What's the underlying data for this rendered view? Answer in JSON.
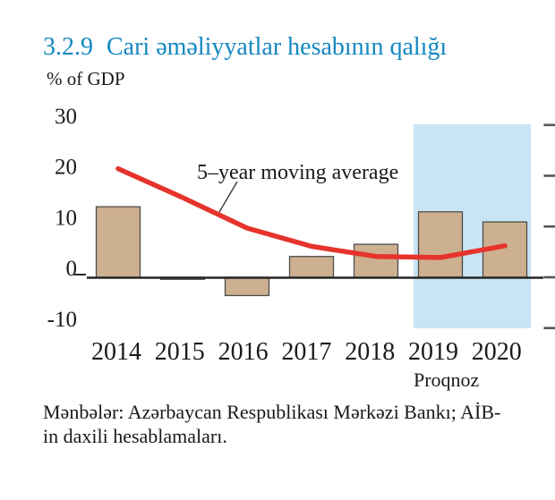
{
  "figure": {
    "number": "3.2.9",
    "title": "Cari əməliyyatlar hesabının qalığı",
    "unit_label": "% of GDP",
    "annotation": "5–year moving average",
    "forecast_label": "Proqnoz",
    "source_line1": "Mənbələr: Azərbaycan Respublikası Mərkəzi Bankı; AİB-",
    "source_line2": "in daxili hesablamaları."
  },
  "colors": {
    "title_blue": "#1588c1",
    "bar_fill": "#cdb08f",
    "bar_stroke": "#4d4d4d",
    "line_red": "#e6332c",
    "forecast_band": "#c9e4f2",
    "axis": "#262626",
    "tick": "#555555",
    "text": "#1a1a1a"
  },
  "chart_data": {
    "type": "bar",
    "title": "3.2.9 Cari əməliyyatlar hesabının qalığı",
    "ylabel": "% of GDP",
    "xlabel": "",
    "categories": [
      "2014",
      "2015",
      "2016",
      "2017",
      "2018",
      "2019",
      "2020"
    ],
    "series": [
      {
        "name": "Cari əməliyyatlar hesabının qalığı",
        "type": "bar",
        "values": [
          13.9,
          -0.4,
          -3.6,
          4.1,
          6.5,
          12.9,
          10.9
        ]
      },
      {
        "name": "5–year moving average",
        "type": "line",
        "values": [
          21.4,
          15.7,
          9.7,
          6.1,
          4.1,
          3.9,
          6.2
        ]
      }
    ],
    "yticks": [
      30,
      20,
      10,
      0,
      -10
    ],
    "ylim": [
      -12,
      32
    ],
    "grid": false,
    "legend_position": "inline-annotation",
    "forecast_categories": [
      "2019",
      "2020"
    ],
    "forecast_label": "Proqnoz"
  }
}
